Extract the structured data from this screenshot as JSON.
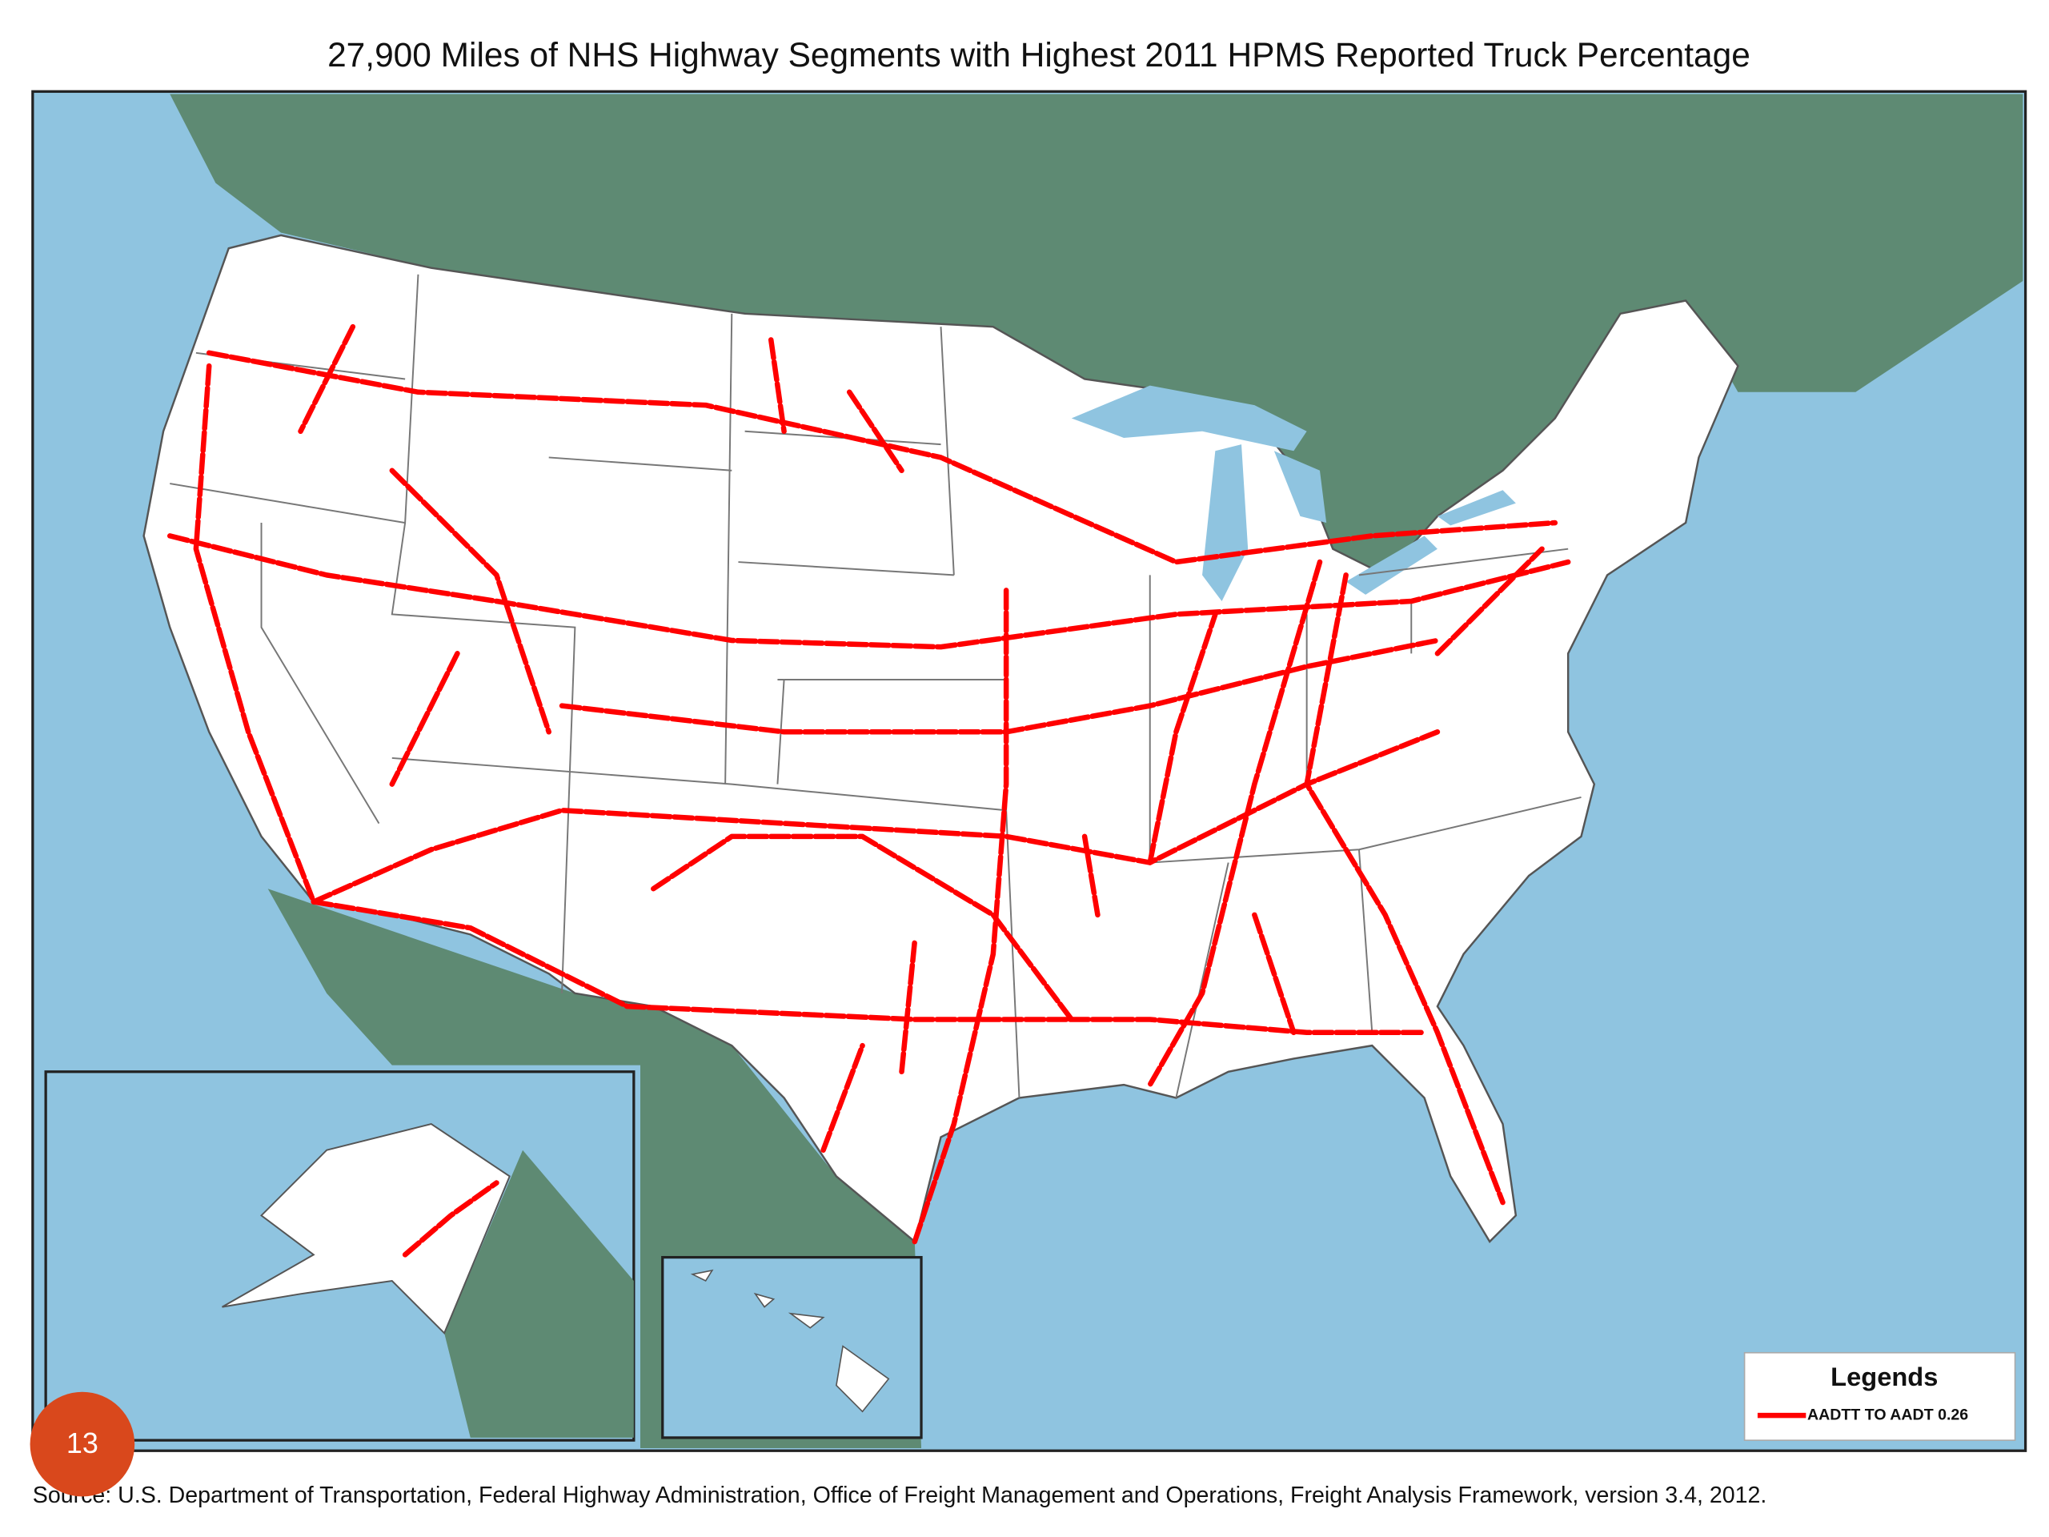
{
  "title": "27,900 Miles of NHS Highway Segments with Highest 2011 HPMS Reported Truck Percentage",
  "legend": {
    "title": "Legends",
    "items": [
      {
        "label": "AADTT TO AADT 0.26",
        "color": "#ff0000"
      }
    ]
  },
  "source": "Source:  U.S. Department of Transportation, Federal Highway Administration, Office of Freight Management and Operations, Freight Analysis Framework, version 3.4, 2012.",
  "page_number": "13"
}
